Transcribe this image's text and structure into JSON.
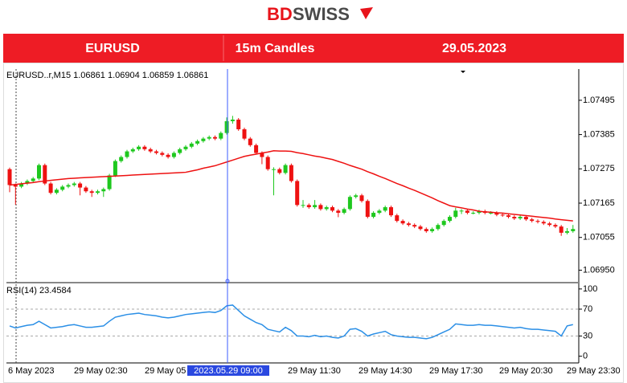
{
  "header": {
    "logo": [
      "BD",
      "SWISS"
    ],
    "banner": [
      "EURUSD",
      "15m Candles",
      "29.05.2023"
    ]
  },
  "chart_data": {
    "type": "candlestick",
    "info": "EURUSD..r,M15  1.06861 1.06904 1.06859 1.06861",
    "up_color": "#1ec81e",
    "down_color": "#ee1111",
    "ylim": [
      1.0691,
      1.0759
    ],
    "yticks": [
      1.07495,
      1.07385,
      1.07275,
      1.07165,
      1.07055,
      {
        "value": 1.0695,
        "label": "1.06950"
      }
    ],
    "x_labels": [
      "6 May 2023",
      "29 May 02:30",
      "29 May 05",
      "29 May 11:30",
      "29 May 14:30",
      "29 May 17:30",
      "29 May 20:30",
      "29 May 23:30"
    ],
    "cursor_label": "2023.05.29 09:00",
    "candles": [
      [
        1.07274,
        1.07279,
        1.072,
        1.07223
      ],
      [
        1.07223,
        1.07228,
        1.0716,
        1.07218
      ],
      [
        1.07218,
        1.07233,
        1.07213,
        1.07228
      ],
      [
        1.07228,
        1.07241,
        1.07223,
        1.07236
      ],
      [
        1.07236,
        1.07249,
        1.07231,
        1.07244
      ],
      [
        1.07244,
        1.07292,
        1.07239,
        1.07287
      ],
      [
        1.07287,
        1.07292,
        1.07223,
        1.07228
      ],
      [
        1.07228,
        1.07233,
        1.07193,
        1.07198
      ],
      [
        1.07198,
        1.07213,
        1.07193,
        1.07208
      ],
      [
        1.07208,
        1.07223,
        1.07203,
        1.07218
      ],
      [
        1.07218,
        1.07228,
        1.07213,
        1.07223
      ],
      [
        1.07223,
        1.07233,
        1.07218,
        1.07228
      ],
      [
        1.07228,
        1.07233,
        1.0719,
        1.07215
      ],
      [
        1.07215,
        1.0722,
        1.07198,
        1.07203
      ],
      [
        1.07203,
        1.07208,
        1.07185,
        1.07198
      ],
      [
        1.07198,
        1.07208,
        1.07193,
        1.07203
      ],
      [
        1.07203,
        1.07215,
        1.07185,
        1.0721
      ],
      [
        1.0721,
        1.07259,
        1.07205,
        1.07254
      ],
      [
        1.07254,
        1.07305,
        1.07249,
        1.073
      ],
      [
        1.073,
        1.07318,
        1.07295,
        1.07313
      ],
      [
        1.07313,
        1.07336,
        1.07308,
        1.07331
      ],
      [
        1.07331,
        1.07343,
        1.07326,
        1.07338
      ],
      [
        1.07338,
        1.07351,
        1.07333,
        1.07346
      ],
      [
        1.07346,
        1.07351,
        1.07333,
        1.07338
      ],
      [
        1.07338,
        1.07343,
        1.07326,
        1.07331
      ],
      [
        1.07331,
        1.07336,
        1.07321,
        1.07326
      ],
      [
        1.07326,
        1.07331,
        1.07315,
        1.0732
      ],
      [
        1.0732,
        1.07325,
        1.07308,
        1.07313
      ],
      [
        1.07313,
        1.07331,
        1.07308,
        1.07326
      ],
      [
        1.07326,
        1.07343,
        1.07321,
        1.07338
      ],
      [
        1.07338,
        1.07351,
        1.07333,
        1.07346
      ],
      [
        1.07346,
        1.07361,
        1.07341,
        1.07356
      ],
      [
        1.07356,
        1.07369,
        1.07351,
        1.07364
      ],
      [
        1.07364,
        1.07377,
        1.07359,
        1.07372
      ],
      [
        1.07372,
        1.07382,
        1.07367,
        1.07377
      ],
      [
        1.07377,
        1.07382,
        1.07367,
        1.07372
      ],
      [
        1.07372,
        1.07395,
        1.07367,
        1.0739
      ],
      [
        1.0739,
        1.0744,
        1.07385,
        1.07428
      ],
      [
        1.07428,
        1.07445,
        1.0742,
        1.07433
      ],
      [
        1.07433,
        1.07438,
        1.07397,
        1.07402
      ],
      [
        1.07402,
        1.07407,
        1.07367,
        1.07372
      ],
      [
        1.07372,
        1.07377,
        1.07346,
        1.07351
      ],
      [
        1.07351,
        1.07356,
        1.07321,
        1.07326
      ],
      [
        1.07326,
        1.07331,
        1.0729,
        1.07313
      ],
      [
        1.07313,
        1.07318,
        1.07269,
        1.07274
      ],
      [
        1.07274,
        1.0728,
        1.0719,
        1.07274
      ],
      [
        1.07274,
        1.07279,
        1.07257,
        1.07262
      ],
      [
        1.07262,
        1.07292,
        1.07257,
        1.07287
      ],
      [
        1.07287,
        1.07292,
        1.07231,
        1.07236
      ],
      [
        1.07236,
        1.07241,
        1.07154,
        1.07159
      ],
      [
        1.07159,
        1.07175,
        1.0715,
        1.07159
      ],
      [
        1.07159,
        1.07164,
        1.07147,
        1.07152
      ],
      [
        1.07152,
        1.07175,
        1.07147,
        1.07159
      ],
      [
        1.07159,
        1.07164,
        1.07141,
        1.07146
      ],
      [
        1.07146,
        1.07157,
        1.07141,
        1.07152
      ],
      [
        1.07152,
        1.07157,
        1.07136,
        1.07141
      ],
      [
        1.07141,
        1.07146,
        1.0712,
        1.07134
      ],
      [
        1.07134,
        1.07151,
        1.07129,
        1.07146
      ],
      [
        1.07146,
        1.0719,
        1.07141,
        1.07185
      ],
      [
        1.07185,
        1.07195,
        1.0718,
        1.0719
      ],
      [
        1.0719,
        1.07195,
        1.07167,
        1.07172
      ],
      [
        1.07172,
        1.07177,
        1.07116,
        1.07121
      ],
      [
        1.07121,
        1.07139,
        1.07116,
        1.07134
      ],
      [
        1.07134,
        1.07146,
        1.07129,
        1.07141
      ],
      [
        1.07141,
        1.07157,
        1.07136,
        1.07152
      ],
      [
        1.07152,
        1.07157,
        1.07121,
        1.07126
      ],
      [
        1.07126,
        1.07131,
        1.07103,
        1.07108
      ],
      [
        1.07108,
        1.07113,
        1.07095,
        1.071
      ],
      [
        1.071,
        1.07105,
        1.0709,
        1.07095
      ],
      [
        1.07095,
        1.071,
        1.07085,
        1.0709
      ],
      [
        1.0709,
        1.07095,
        1.07077,
        1.07082
      ],
      [
        1.07082,
        1.07087,
        1.0707,
        1.07075
      ],
      [
        1.07075,
        1.07087,
        1.0707,
        1.07082
      ],
      [
        1.07082,
        1.071,
        1.07077,
        1.07095
      ],
      [
        1.07095,
        1.07113,
        1.0709,
        1.07108
      ],
      [
        1.07108,
        1.07126,
        1.07103,
        1.07121
      ],
      [
        1.07121,
        1.0715,
        1.07116,
        1.07141
      ],
      [
        1.07141,
        1.07146,
        1.0713,
        1.07141
      ],
      [
        1.07141,
        1.07146,
        1.07129,
        1.07134
      ],
      [
        1.07134,
        1.07139,
        1.07129,
        1.07134
      ],
      [
        1.07134,
        1.07144,
        1.07129,
        1.07139
      ],
      [
        1.07139,
        1.07144,
        1.07129,
        1.07134
      ],
      [
        1.07134,
        1.07139,
        1.07129,
        1.07134
      ],
      [
        1.07134,
        1.07139,
        1.07123,
        1.07128
      ],
      [
        1.07128,
        1.07133,
        1.07121,
        1.07126
      ],
      [
        1.07126,
        1.07131,
        1.07116,
        1.07121
      ],
      [
        1.07121,
        1.07126,
        1.07111,
        1.07116
      ],
      [
        1.07116,
        1.07126,
        1.07111,
        1.07121
      ],
      [
        1.07121,
        1.07126,
        1.07108,
        1.07113
      ],
      [
        1.07113,
        1.07118,
        1.07103,
        1.07108
      ],
      [
        1.07108,
        1.07113,
        1.071,
        1.07105
      ],
      [
        1.07105,
        1.0711,
        1.07095,
        1.071
      ],
      [
        1.071,
        1.07105,
        1.0709,
        1.07095
      ],
      [
        1.07095,
        1.071,
        1.07085,
        1.0709
      ],
      [
        1.0709,
        1.07095,
        1.0706,
        1.0707
      ],
      [
        1.0707,
        1.07085,
        1.07065,
        1.07075
      ],
      [
        1.07075,
        1.07095,
        1.0707,
        1.07082
      ]
    ],
    "moving_average": {
      "color": "#ee1111",
      "values": [
        1.07223,
        1.07225,
        1.07227,
        1.07229,
        1.07231,
        1.07234,
        1.07236,
        1.07238,
        1.0724,
        1.07242,
        1.07244,
        1.07245,
        1.07246,
        1.07247,
        1.07248,
        1.07249,
        1.0725,
        1.07251,
        1.07252,
        1.07253,
        1.07254,
        1.07255,
        1.07256,
        1.07257,
        1.07258,
        1.07259,
        1.0726,
        1.07261,
        1.07262,
        1.07263,
        1.07264,
        1.07268,
        1.07272,
        1.07277,
        1.07281,
        1.07285,
        1.07291,
        1.07297,
        1.07303,
        1.07309,
        1.07315,
        1.07319,
        1.07322,
        1.07326,
        1.07329,
        1.07333,
        1.07332,
        1.07332,
        1.07331,
        1.07327,
        1.07324,
        1.0732,
        1.07316,
        1.07313,
        1.07309,
        1.07305,
        1.07299,
        1.07293,
        1.07286,
        1.0728,
        1.07274,
        1.07266,
        1.07259,
        1.07251,
        1.07244,
        1.07236,
        1.07228,
        1.07221,
        1.07213,
        1.07206,
        1.07198,
        1.0719,
        1.07182,
        1.07173,
        1.07165,
        1.07157,
        1.07153,
        1.0715,
        1.07146,
        1.07143,
        1.07139,
        1.07137,
        1.07136,
        1.07134,
        1.07133,
        1.07131,
        1.07129,
        1.07127,
        1.07125,
        1.07123,
        1.07121,
        1.07119,
        1.07117,
        1.07114,
        1.07112,
        1.0711,
        1.07108
      ]
    },
    "indicator": {
      "label": "RSI(14) 23.4584",
      "color": "#2b8fe6",
      "ylim": [
        -10,
        107
      ],
      "yticks": [
        100,
        70,
        30,
        0
      ],
      "levels": [
        70,
        30
      ],
      "values": [
        45,
        42,
        44,
        46,
        47,
        52,
        47,
        42,
        43,
        44,
        46,
        47,
        45,
        43,
        43,
        44,
        45,
        52,
        58,
        60,
        62,
        63,
        64,
        62,
        61,
        60,
        58,
        57,
        58,
        60,
        62,
        63,
        64,
        65,
        66,
        65,
        68,
        75,
        76,
        68,
        60,
        55,
        50,
        47,
        40,
        38,
        36,
        43,
        38,
        30,
        30,
        29,
        31,
        29,
        30,
        28,
        27,
        30,
        40,
        41,
        37,
        30,
        33,
        35,
        37,
        32,
        30,
        29,
        28,
        28,
        27,
        26,
        28,
        32,
        36,
        40,
        48,
        47,
        46,
        46,
        47,
        46,
        46,
        45,
        44,
        43,
        42,
        43,
        41,
        40,
        40,
        39,
        38,
        37,
        30,
        45,
        47
      ]
    }
  }
}
